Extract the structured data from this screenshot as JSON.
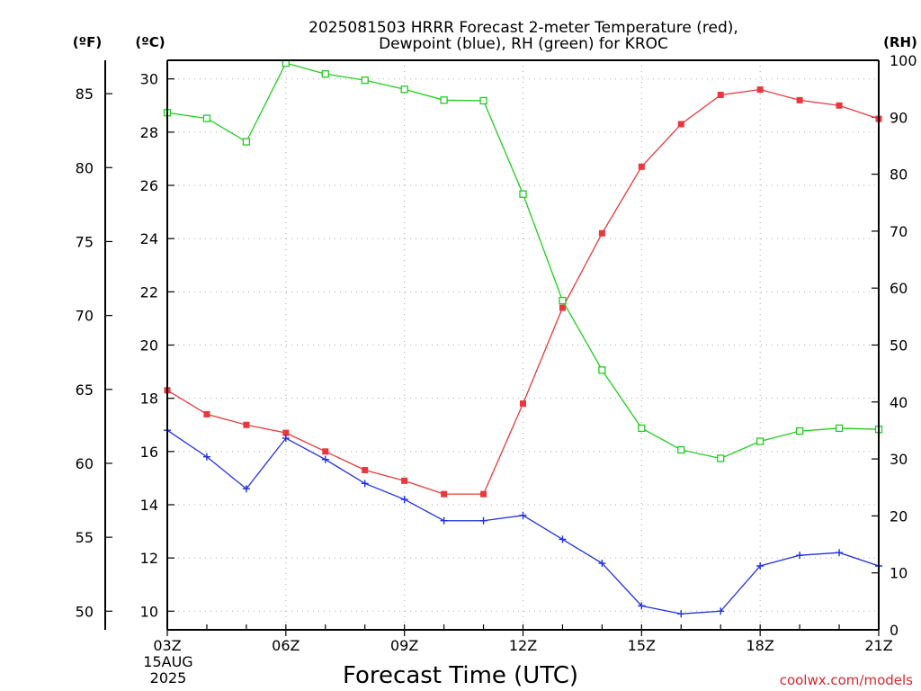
{
  "chart_data": {
    "type": "line",
    "title": [
      "2025081503 HRRR Forecast 2-meter Temperature (red),",
      "Dewpoint (blue), RH (green) for KROC"
    ],
    "xlabel": "Forecast Time (UTC)",
    "credit": "coolwx.com/models",
    "units": {
      "fahrenheit": "(ºF)",
      "celsius": "(ºC)",
      "rh": "(RH)"
    },
    "x": [
      "03Z",
      "04Z",
      "05Z",
      "06Z",
      "07Z",
      "08Z",
      "09Z",
      "10Z",
      "11Z",
      "12Z",
      "13Z",
      "14Z",
      "15Z",
      "16Z",
      "17Z",
      "18Z",
      "19Z",
      "20Z",
      "21Z"
    ],
    "x_ticks": [
      "03Z",
      "06Z",
      "09Z",
      "12Z",
      "15Z",
      "18Z",
      "21Z"
    ],
    "x_date": [
      "15AUG",
      "2025"
    ],
    "celsius_ticks": [
      10,
      12,
      14,
      16,
      18,
      20,
      22,
      24,
      26,
      28,
      30
    ],
    "fahrenheit_ticks": [
      50,
      55,
      60,
      65,
      70,
      75,
      80,
      85
    ],
    "rh_ticks": [
      0,
      10,
      20,
      30,
      40,
      50,
      60,
      70,
      80,
      90,
      100
    ],
    "celsius_range": [
      9.3,
      30.7
    ],
    "rh_range": [
      0,
      100
    ],
    "series": [
      {
        "name": "Temperature",
        "axis": "celsius",
        "color": "#e8383d",
        "marker": "filled-square",
        "values": [
          18.3,
          17.4,
          17.0,
          16.7,
          16.0,
          15.3,
          14.9,
          14.4,
          14.4,
          17.8,
          21.4,
          24.2,
          26.7,
          28.3,
          29.4,
          29.6,
          29.2,
          29.0,
          28.5
        ]
      },
      {
        "name": "Dewpoint",
        "axis": "celsius",
        "color": "#2030e0",
        "marker": "plus",
        "values": [
          16.8,
          15.8,
          14.6,
          16.5,
          15.7,
          14.8,
          14.2,
          13.4,
          13.4,
          13.6,
          12.7,
          11.8,
          10.2,
          9.9,
          10.0,
          11.7,
          12.1,
          12.2,
          11.7
        ]
      },
      {
        "name": "RH",
        "axis": "rh",
        "color": "#22cc22",
        "marker": "open-square",
        "values": [
          90.8,
          89.8,
          85.7,
          99.5,
          97.6,
          96.5,
          94.9,
          93.0,
          92.9,
          76.5,
          57.8,
          45.6,
          35.4,
          31.6,
          30.1,
          33.1,
          34.9,
          35.4,
          35.2
        ]
      }
    ]
  }
}
